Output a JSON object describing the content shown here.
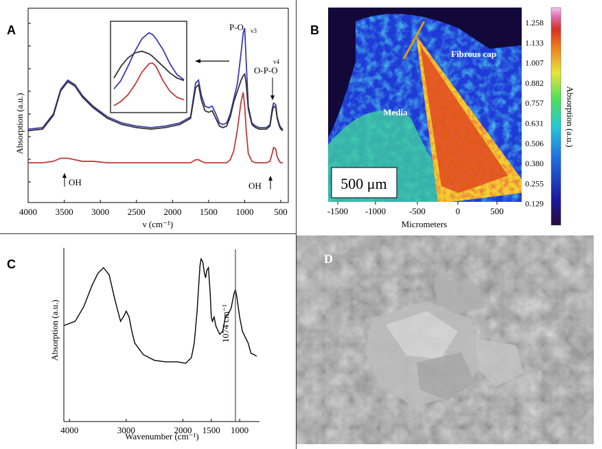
{
  "panels": {
    "a": {
      "letter": "A",
      "ylabel": "Absorption (a.u.)",
      "xlabel": "ν (cm⁻¹)",
      "x_ticks": [
        "4000",
        "3500",
        "3000",
        "2500",
        "2000",
        "1500",
        "1000",
        "500"
      ],
      "annotations": {
        "po_v3": "P-O",
        "po_v3_sub": "v3",
        "opo_v4_sup": "v4",
        "opo": "O-P-O",
        "oh_left": "OH",
        "oh_right": "OH"
      }
    },
    "b": {
      "letter": "B",
      "xlabel": "Micrometers",
      "x_ticks": [
        "-1500",
        "-1000",
        "-500",
        "0",
        "500"
      ],
      "colorbar_ticks": [
        "1.258",
        "1.133",
        "1.007",
        "0.882",
        "0.757",
        "0.631",
        "0.506",
        "0.380",
        "0.255",
        "0.129"
      ],
      "colorbar_label": "Absorption (a.u.)",
      "label_fibrous": "Fibrous cap",
      "label_media": "Media",
      "scalebar": "500 μm"
    },
    "c": {
      "letter": "C",
      "ylabel": "Absorption (a.u.)",
      "xlabel": "Wavenumber (cm⁻¹)",
      "x_ticks": [
        "4000",
        "3000",
        "2000",
        "1500",
        "1000"
      ],
      "annotation": "1074 cm⁻¹"
    },
    "d": {
      "letter": "D"
    }
  },
  "chart_data": [
    {
      "panel": "A",
      "type": "line",
      "xlabel": "ν (cm⁻¹)",
      "ylabel": "Absorption (a.u.)",
      "xlim": [
        4000,
        450
      ],
      "ylim": [
        0,
        1
      ],
      "x_reversed": true,
      "series": [
        {
          "color": "#3a3ab0",
          "x": [
            4000,
            3800,
            3650,
            3550,
            3450,
            3350,
            3250,
            3100,
            2900,
            2700,
            2500,
            2300,
            2100,
            1900,
            1750,
            1680,
            1640,
            1600,
            1550,
            1500,
            1450,
            1400,
            1350,
            1300,
            1250,
            1200,
            1150,
            1100,
            1050,
            1020,
            1000,
            980,
            950,
            900,
            850,
            800,
            700,
            650,
            620,
            600,
            570,
            550,
            520,
            500,
            470
          ],
          "y": [
            0.3,
            0.31,
            0.4,
            0.56,
            0.62,
            0.59,
            0.52,
            0.45,
            0.38,
            0.34,
            0.32,
            0.31,
            0.32,
            0.34,
            0.38,
            0.6,
            0.62,
            0.52,
            0.45,
            0.44,
            0.45,
            0.4,
            0.34,
            0.33,
            0.34,
            0.4,
            0.5,
            0.6,
            0.8,
            0.93,
            0.96,
            0.75,
            0.45,
            0.34,
            0.32,
            0.31,
            0.31,
            0.33,
            0.43,
            0.47,
            0.46,
            0.38,
            0.33,
            0.31,
            0.3
          ]
        },
        {
          "color": "#333333",
          "x": [
            4000,
            3800,
            3650,
            3550,
            3450,
            3350,
            3250,
            3100,
            2900,
            2700,
            2500,
            2300,
            2100,
            1900,
            1750,
            1680,
            1640,
            1600,
            1550,
            1500,
            1450,
            1400,
            1350,
            1300,
            1250,
            1200,
            1150,
            1100,
            1050,
            1020,
            1000,
            980,
            950,
            900,
            850,
            800,
            700,
            650,
            620,
            600,
            570,
            550,
            520,
            500,
            470
          ],
          "y": [
            0.29,
            0.3,
            0.39,
            0.55,
            0.61,
            0.58,
            0.51,
            0.44,
            0.37,
            0.33,
            0.31,
            0.3,
            0.31,
            0.33,
            0.37,
            0.57,
            0.59,
            0.49,
            0.42,
            0.41,
            0.42,
            0.37,
            0.32,
            0.31,
            0.32,
            0.38,
            0.48,
            0.55,
            0.62,
            0.65,
            0.66,
            0.6,
            0.43,
            0.33,
            0.31,
            0.3,
            0.3,
            0.32,
            0.41,
            0.45,
            0.44,
            0.37,
            0.32,
            0.3,
            0.29
          ]
        },
        {
          "color": "#c0393b",
          "x": [
            4000,
            3800,
            3650,
            3550,
            3450,
            3350,
            3250,
            3100,
            2900,
            2700,
            2500,
            2300,
            2100,
            1900,
            1750,
            1680,
            1640,
            1600,
            1550,
            1500,
            1450,
            1400,
            1350,
            1300,
            1250,
            1200,
            1150,
            1100,
            1050,
            1020,
            1000,
            980,
            950,
            900,
            850,
            800,
            700,
            650,
            620,
            600,
            570,
            550,
            520,
            500,
            470
          ],
          "y": [
            0.08,
            0.08,
            0.09,
            0.11,
            0.11,
            0.1,
            0.09,
            0.09,
            0.08,
            0.08,
            0.08,
            0.08,
            0.08,
            0.08,
            0.08,
            0.1,
            0.1,
            0.09,
            0.08,
            0.08,
            0.08,
            0.08,
            0.08,
            0.08,
            0.08,
            0.1,
            0.16,
            0.3,
            0.48,
            0.54,
            0.45,
            0.3,
            0.14,
            0.09,
            0.08,
            0.08,
            0.08,
            0.09,
            0.14,
            0.18,
            0.17,
            0.12,
            0.09,
            0.08,
            0.08
          ]
        }
      ]
    },
    {
      "panel": "A-inset",
      "type": "line",
      "series": [
        {
          "color": "#3a3ab0",
          "x": [
            0,
            0.1,
            0.2,
            0.3,
            0.4,
            0.5,
            0.55,
            0.6,
            0.7,
            0.8,
            0.9,
            1.0
          ],
          "y": [
            0.25,
            0.35,
            0.52,
            0.7,
            0.85,
            0.92,
            0.9,
            0.85,
            0.72,
            0.55,
            0.42,
            0.36
          ]
        },
        {
          "color": "#333333",
          "x": [
            0,
            0.1,
            0.2,
            0.3,
            0.4,
            0.5,
            0.55,
            0.6,
            0.7,
            0.8,
            0.9,
            1.0
          ],
          "y": [
            0.38,
            0.52,
            0.62,
            0.68,
            0.7,
            0.67,
            0.64,
            0.6,
            0.52,
            0.44,
            0.38,
            0.35
          ]
        },
        {
          "color": "#c0393b",
          "x": [
            0,
            0.1,
            0.2,
            0.3,
            0.4,
            0.5,
            0.55,
            0.6,
            0.7,
            0.8,
            0.9,
            1.0
          ],
          "y": [
            0.05,
            0.1,
            0.18,
            0.3,
            0.45,
            0.55,
            0.56,
            0.52,
            0.35,
            0.22,
            0.15,
            0.12
          ]
        }
      ]
    },
    {
      "panel": "C",
      "type": "line",
      "xlabel": "Wavenumber (cm⁻¹)",
      "ylabel": "Absorption (a.u.)",
      "xlim": [
        4100,
        650
      ],
      "ylim": [
        0,
        1
      ],
      "x_reversed": true,
      "series": [
        {
          "color": "#000000",
          "x": [
            4100,
            3900,
            3750,
            3600,
            3500,
            3400,
            3300,
            3200,
            3100,
            3050,
            3000,
            2950,
            2900,
            2850,
            2700,
            2500,
            2300,
            2100,
            1950,
            1850,
            1800,
            1750,
            1700,
            1680,
            1650,
            1620,
            1600,
            1580,
            1550,
            1520,
            1500,
            1480,
            1450,
            1420,
            1400,
            1350,
            1300,
            1250,
            1200,
            1150,
            1100,
            1074,
            1050,
            1000,
            950,
            900,
            850,
            800,
            750,
            700
          ],
          "y": [
            0.52,
            0.55,
            0.65,
            0.8,
            0.88,
            0.92,
            0.87,
            0.7,
            0.55,
            0.58,
            0.62,
            0.58,
            0.48,
            0.4,
            0.32,
            0.28,
            0.27,
            0.27,
            0.26,
            0.3,
            0.4,
            0.62,
            0.93,
            0.98,
            0.96,
            0.88,
            0.85,
            0.9,
            0.92,
            0.75,
            0.58,
            0.55,
            0.58,
            0.52,
            0.5,
            0.46,
            0.48,
            0.58,
            0.6,
            0.64,
            0.74,
            0.77,
            0.72,
            0.58,
            0.48,
            0.44,
            0.4,
            0.33,
            0.32,
            0.31
          ]
        }
      ],
      "annotations": [
        {
          "x": 1074,
          "text": "1074 cm⁻¹",
          "line_color": "#2e7d1f"
        }
      ]
    }
  ]
}
